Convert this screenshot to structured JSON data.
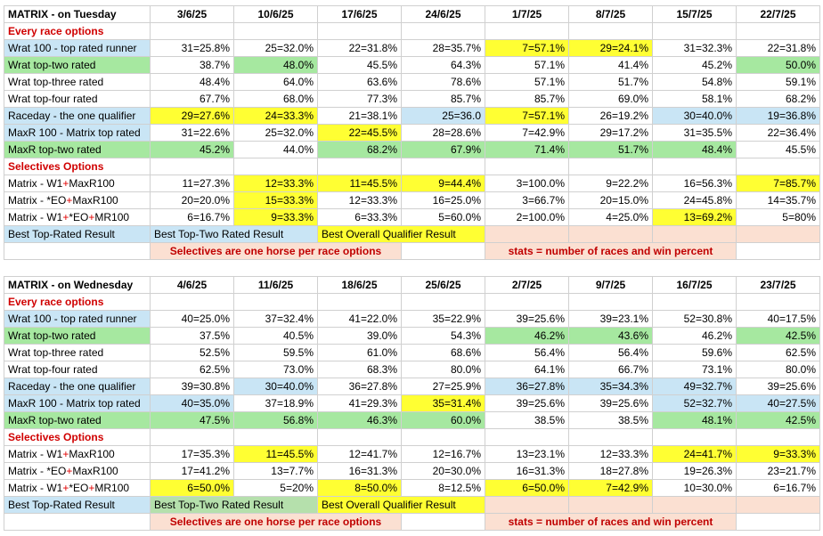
{
  "tables": [
    {
      "title": "MATRIX - on Tuesday",
      "dates": [
        "3/6/25",
        "10/6/25",
        "17/6/25",
        "24/6/25",
        "1/7/25",
        "8/7/25",
        "15/7/25",
        "22/7/25"
      ],
      "sections": [
        {
          "label": "Every race options",
          "rows": [
            {
              "label": "Wrat 100 - top rated runner",
              "label_bg": "b",
              "cells": [
                [
                  "31=25.8%",
                  ""
                ],
                [
                  "25=32.0%",
                  ""
                ],
                [
                  "22=31.8%",
                  ""
                ],
                [
                  "28=35.7%",
                  ""
                ],
                [
                  "7=57.1%",
                  "y"
                ],
                [
                  "29=24.1%",
                  "y"
                ],
                [
                  "31=32.3%",
                  ""
                ],
                [
                  "22=31.8%",
                  ""
                ]
              ]
            },
            {
              "label": "Wrat top-two rated",
              "label_bg": "g",
              "cells": [
                [
                  "38.7%",
                  ""
                ],
                [
                  "48.0%",
                  "g"
                ],
                [
                  "45.5%",
                  ""
                ],
                [
                  "64.3%",
                  ""
                ],
                [
                  "57.1%",
                  ""
                ],
                [
                  "41.4%",
                  ""
                ],
                [
                  "45.2%",
                  ""
                ],
                [
                  "50.0%",
                  "g"
                ]
              ]
            },
            {
              "label": "Wrat top-three rated",
              "label_bg": "",
              "cells": [
                [
                  "48.4%",
                  ""
                ],
                [
                  "64.0%",
                  ""
                ],
                [
                  "63.6%",
                  ""
                ],
                [
                  "78.6%",
                  ""
                ],
                [
                  "57.1%",
                  ""
                ],
                [
                  "51.7%",
                  ""
                ],
                [
                  "54.8%",
                  ""
                ],
                [
                  "59.1%",
                  ""
                ]
              ]
            },
            {
              "label": "Wrat top-four rated",
              "label_bg": "",
              "cells": [
                [
                  "67.7%",
                  ""
                ],
                [
                  "68.0%",
                  ""
                ],
                [
                  "77.3%",
                  ""
                ],
                [
                  "85.7%",
                  ""
                ],
                [
                  "85.7%",
                  ""
                ],
                [
                  "69.0%",
                  ""
                ],
                [
                  "58.1%",
                  ""
                ],
                [
                  "68.2%",
                  ""
                ]
              ]
            },
            {
              "label": "Raceday - the one qualifier",
              "label_bg": "b",
              "cells": [
                [
                  "29=27.6%",
                  "y"
                ],
                [
                  "24=33.3%",
                  "y"
                ],
                [
                  "21=38.1%",
                  ""
                ],
                [
                  "25=36.0",
                  "b"
                ],
                [
                  "7=57.1%",
                  "y"
                ],
                [
                  "26=19.2%",
                  ""
                ],
                [
                  "30=40.0%",
                  "b"
                ],
                [
                  "19=36.8%",
                  "b"
                ]
              ]
            },
            {
              "label": "MaxR 100 - Matrix top rated",
              "label_bg": "b",
              "cells": [
                [
                  "31=22.6%",
                  ""
                ],
                [
                  "25=32.0%",
                  ""
                ],
                [
                  "22=45.5%",
                  "y"
                ],
                [
                  "28=28.6%",
                  ""
                ],
                [
                  "7=42.9%",
                  ""
                ],
                [
                  "29=17.2%",
                  ""
                ],
                [
                  "31=35.5%",
                  ""
                ],
                [
                  "22=36.4%",
                  ""
                ]
              ]
            },
            {
              "label": "MaxR top-two rated",
              "label_bg": "g",
              "cells": [
                [
                  "45.2%",
                  "g"
                ],
                [
                  "44.0%",
                  ""
                ],
                [
                  "68.2%",
                  "g"
                ],
                [
                  "67.9%",
                  "g"
                ],
                [
                  "71.4%",
                  "g"
                ],
                [
                  "51.7%",
                  "g"
                ],
                [
                  "48.4%",
                  "g"
                ],
                [
                  "45.5%",
                  ""
                ]
              ]
            }
          ]
        },
        {
          "label": "Selectives Options",
          "rows": [
            {
              "label": "Matrix - W1+MaxR100",
              "label_bg": "",
              "cells": [
                [
                  "11=27.3%",
                  ""
                ],
                [
                  "12=33.3%",
                  "y"
                ],
                [
                  "11=45.5%",
                  "y"
                ],
                [
                  "9=44.4%",
                  "y"
                ],
                [
                  "3=100.0%",
                  ""
                ],
                [
                  "9=22.2%",
                  ""
                ],
                [
                  "16=56.3%",
                  ""
                ],
                [
                  "7=85.7%",
                  "y"
                ]
              ]
            },
            {
              "label": "Matrix - *EO+MaxR100",
              "label_bg": "",
              "cells": [
                [
                  "20=20.0%",
                  ""
                ],
                [
                  "15=33.3%",
                  "y"
                ],
                [
                  "12=33.3%",
                  ""
                ],
                [
                  "16=25.0%",
                  ""
                ],
                [
                  "3=66.7%",
                  ""
                ],
                [
                  "20=15.0%",
                  ""
                ],
                [
                  "24=45.8%",
                  ""
                ],
                [
                  "14=35.7%",
                  ""
                ]
              ]
            },
            {
              "label": "Matrix - W1+*EO+MR100",
              "label_bg": "",
              "cells": [
                [
                  "6=16.7%",
                  ""
                ],
                [
                  "9=33.3%",
                  "y"
                ],
                [
                  "6=33.3%",
                  ""
                ],
                [
                  "5=60.0%",
                  ""
                ],
                [
                  "2=100.0%",
                  ""
                ],
                [
                  "4=25.0%",
                  ""
                ],
                [
                  "13=69.2%",
                  "y"
                ],
                [
                  "5=80%",
                  ""
                ]
              ]
            }
          ]
        }
      ],
      "legend": {
        "best_top_rated": "Best Top-Rated Result",
        "best_top_two": "Best Top-Two Rated Result",
        "best_overall": "Best Overall Qualifier Result",
        "top_two_bg": "b"
      },
      "notes": {
        "selectives": "Selectives are one horse per race options",
        "stats": "stats = number of races and win percent"
      }
    },
    {
      "title": "MATRIX - on Wednesday",
      "dates": [
        "4/6/25",
        "11/6/25",
        "18/6/25",
        "25/6/25",
        "2/7/25",
        "9/7/25",
        "16/7/25",
        "23/7/25"
      ],
      "sections": [
        {
          "label": "Every race options",
          "rows": [
            {
              "label": "Wrat 100 - top rated runner",
              "label_bg": "b",
              "cells": [
                [
                  "40=25.0%",
                  ""
                ],
                [
                  "37=32.4%",
                  ""
                ],
                [
                  "41=22.0%",
                  ""
                ],
                [
                  "35=22.9%",
                  ""
                ],
                [
                  "39=25.6%",
                  ""
                ],
                [
                  "39=23.1%",
                  ""
                ],
                [
                  "52=30.8%",
                  ""
                ],
                [
                  "40=17.5%",
                  ""
                ]
              ]
            },
            {
              "label": "Wrat top-two rated",
              "label_bg": "g",
              "cells": [
                [
                  "37.5%",
                  ""
                ],
                [
                  "40.5%",
                  ""
                ],
                [
                  "39.0%",
                  ""
                ],
                [
                  "54.3%",
                  ""
                ],
                [
                  "46.2%",
                  "g"
                ],
                [
                  "43.6%",
                  "g"
                ],
                [
                  "46.2%",
                  ""
                ],
                [
                  "42.5%",
                  "g"
                ]
              ]
            },
            {
              "label": "Wrat top-three rated",
              "label_bg": "",
              "cells": [
                [
                  "52.5%",
                  ""
                ],
                [
                  "59.5%",
                  ""
                ],
                [
                  "61.0%",
                  ""
                ],
                [
                  "68.6%",
                  ""
                ],
                [
                  "56.4%",
                  ""
                ],
                [
                  "56.4%",
                  ""
                ],
                [
                  "59.6%",
                  ""
                ],
                [
                  "62.5%",
                  ""
                ]
              ]
            },
            {
              "label": "Wrat top-four rated",
              "label_bg": "",
              "cells": [
                [
                  "62.5%",
                  ""
                ],
                [
                  "73.0%",
                  ""
                ],
                [
                  "68.3%",
                  ""
                ],
                [
                  "80.0%",
                  ""
                ],
                [
                  "64.1%",
                  ""
                ],
                [
                  "66.7%",
                  ""
                ],
                [
                  "73.1%",
                  ""
                ],
                [
                  "80.0%",
                  ""
                ]
              ]
            },
            {
              "label": "Raceday - the one qualifier",
              "label_bg": "b",
              "cells": [
                [
                  "39=30.8%",
                  ""
                ],
                [
                  "30=40.0%",
                  "b"
                ],
                [
                  "36=27.8%",
                  ""
                ],
                [
                  "27=25.9%",
                  ""
                ],
                [
                  "36=27.8%",
                  "b"
                ],
                [
                  "35=34.3%",
                  "b"
                ],
                [
                  "49=32.7%",
                  "b"
                ],
                [
                  "39=25.6%",
                  ""
                ]
              ]
            },
            {
              "label": "MaxR 100 - Matrix top rated",
              "label_bg": "b",
              "cells": [
                [
                  "40=35.0%",
                  "b"
                ],
                [
                  "37=18.9%",
                  ""
                ],
                [
                  "41=29.3%",
                  ""
                ],
                [
                  "35=31.4%",
                  "y"
                ],
                [
                  "39=25.6%",
                  ""
                ],
                [
                  "39=25.6%",
                  ""
                ],
                [
                  "52=32.7%",
                  "b"
                ],
                [
                  "40=27.5%",
                  "b"
                ]
              ]
            },
            {
              "label": "MaxR top-two rated",
              "label_bg": "g",
              "cells": [
                [
                  "47.5%",
                  "g"
                ],
                [
                  "56.8%",
                  "g"
                ],
                [
                  "46.3%",
                  "g"
                ],
                [
                  "60.0%",
                  "g"
                ],
                [
                  "38.5%",
                  ""
                ],
                [
                  "38.5%",
                  ""
                ],
                [
                  "48.1%",
                  "g"
                ],
                [
                  "42.5%",
                  "g"
                ]
              ]
            }
          ]
        },
        {
          "label": "Selectives Options",
          "rows": [
            {
              "label": "Matrix - W1+MaxR100",
              "label_bg": "",
              "cells": [
                [
                  "17=35.3%",
                  ""
                ],
                [
                  "11=45.5%",
                  "y"
                ],
                [
                  "12=41.7%",
                  ""
                ],
                [
                  "12=16.7%",
                  ""
                ],
                [
                  "13=23.1%",
                  ""
                ],
                [
                  "12=33.3%",
                  ""
                ],
                [
                  "24=41.7%",
                  "y"
                ],
                [
                  "9=33.3%",
                  "y"
                ]
              ]
            },
            {
              "label": "Matrix - *EO+MaxR100",
              "label_bg": "",
              "cells": [
                [
                  "17=41.2%",
                  ""
                ],
                [
                  "13=7.7%",
                  ""
                ],
                [
                  "16=31.3%",
                  ""
                ],
                [
                  "20=30.0%",
                  ""
                ],
                [
                  "16=31.3%",
                  ""
                ],
                [
                  "18=27.8%",
                  ""
                ],
                [
                  "19=26.3%",
                  ""
                ],
                [
                  "23=21.7%",
                  ""
                ]
              ]
            },
            {
              "label": "Matrix - W1+*EO+MR100",
              "label_bg": "",
              "cells": [
                [
                  "6=50.0%",
                  "y"
                ],
                [
                  "5=20%",
                  ""
                ],
                [
                  "8=50.0%",
                  "y"
                ],
                [
                  "8=12.5%",
                  ""
                ],
                [
                  "6=50.0%",
                  "y"
                ],
                [
                  "7=42.9%",
                  "y"
                ],
                [
                  "10=30.0%",
                  ""
                ],
                [
                  "6=16.7%",
                  ""
                ]
              ]
            }
          ]
        }
      ],
      "legend": {
        "best_top_rated": "Best Top-Rated Result",
        "best_top_two": "Best Top-Two Rated Result",
        "best_overall": "Best Overall Qualifier Result",
        "top_two_bg": "dg"
      },
      "notes": {
        "selectives": "Selectives are one horse per race options",
        "stats": "stats = number of races and win percent"
      }
    }
  ],
  "colors": {
    "blue": "#c9e5f5",
    "green": "#a6e8a0",
    "yellow": "#ffff33",
    "peach": "#fbe0d2",
    "red": "#e00000"
  }
}
